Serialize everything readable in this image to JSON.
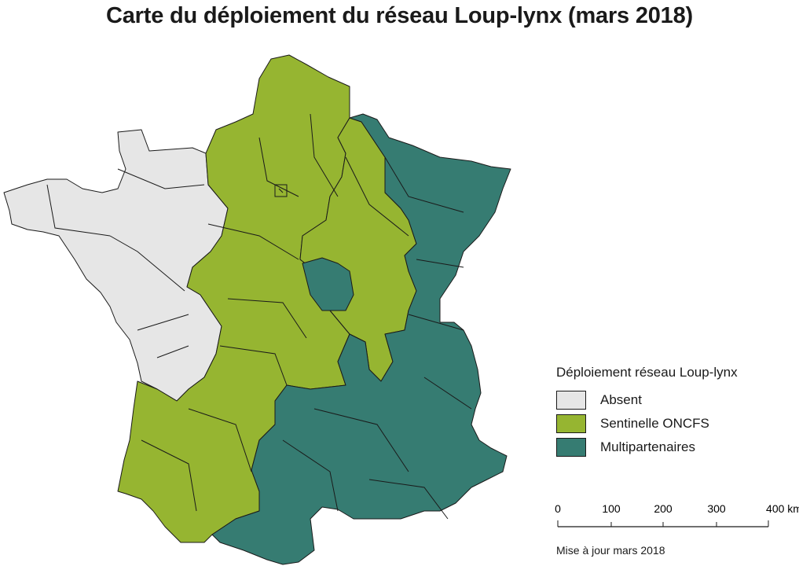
{
  "title": "Carte du déploiement du réseau Loup-lynx (mars 2018)",
  "colors": {
    "absent": "#e6e6e6",
    "sentinelle": "#96b531",
    "multipartenaires": "#367c72"
  },
  "legend": {
    "title": "Déploiement réseau Loup-lynx",
    "items": [
      {
        "key": "absent",
        "label": "Absent"
      },
      {
        "key": "sentinelle",
        "label": "Sentinelle ONCFS"
      },
      {
        "key": "multipartenaires",
        "label": "Multipartenaires"
      }
    ]
  },
  "scale": {
    "ticks": [
      "0",
      "100",
      "200",
      "300",
      "400 km"
    ]
  },
  "footnote": "Mise à jour mars 2018",
  "regions": [
    {
      "name": "bretagne-normandie-ouest",
      "status": "absent"
    },
    {
      "name": "centre-nord",
      "status": "sentinelle"
    },
    {
      "name": "sud-ouest",
      "status": "sentinelle"
    },
    {
      "name": "nord-est",
      "status": "sentinelle"
    },
    {
      "name": "est-alpes-sud",
      "status": "multipartenaires"
    },
    {
      "name": "centre-isole",
      "status": "multipartenaires"
    }
  ]
}
